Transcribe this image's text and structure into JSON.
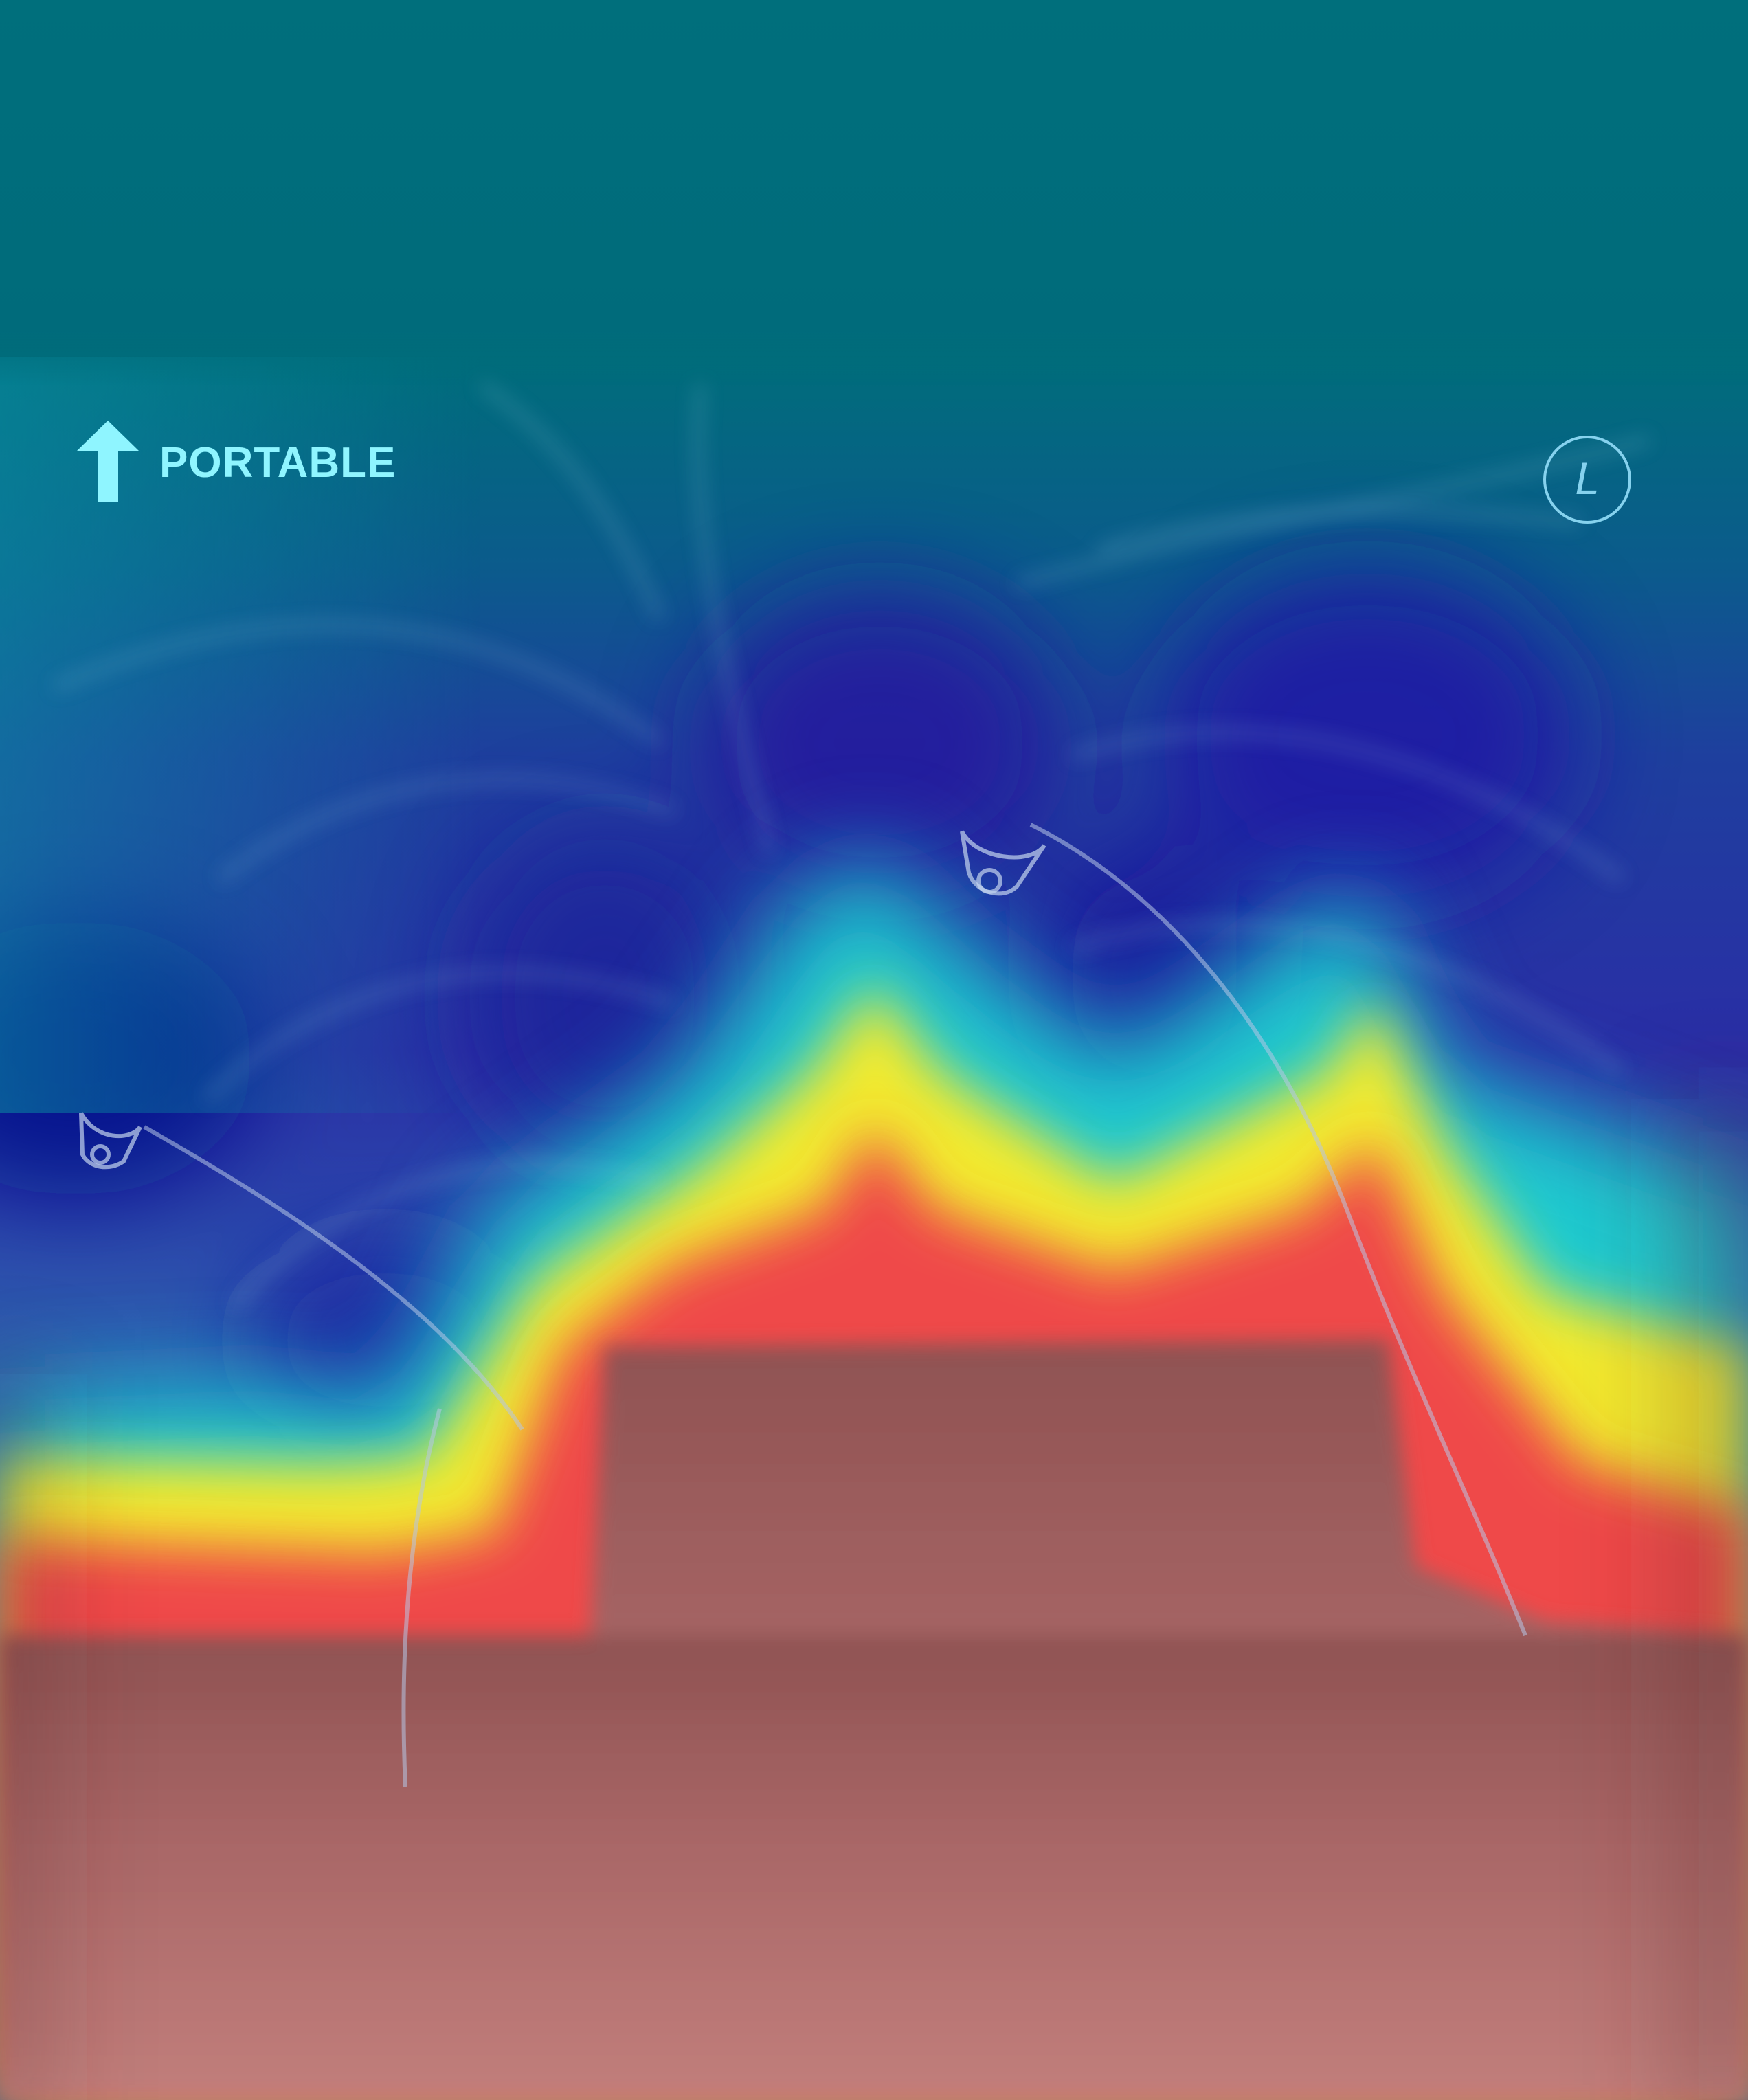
{
  "image": {
    "kind": "portable chest radiograph with heatmap overlay",
    "colormap": [
      "#00007f",
      "#0000ff",
      "#00ffff",
      "#ffff00",
      "#ff0000",
      "#7f0000"
    ],
    "colors": {
      "top_band": "#006d7a",
      "cool_region": "#2b2ea8",
      "hot_region": "#b77575",
      "marker_text": "#8ff5ff",
      "side_marker": "#86d2ee"
    }
  },
  "markers": {
    "portable_label": "PORTABLE",
    "portable_arrow_icon": "arrow-up-icon",
    "side_label": "L"
  }
}
